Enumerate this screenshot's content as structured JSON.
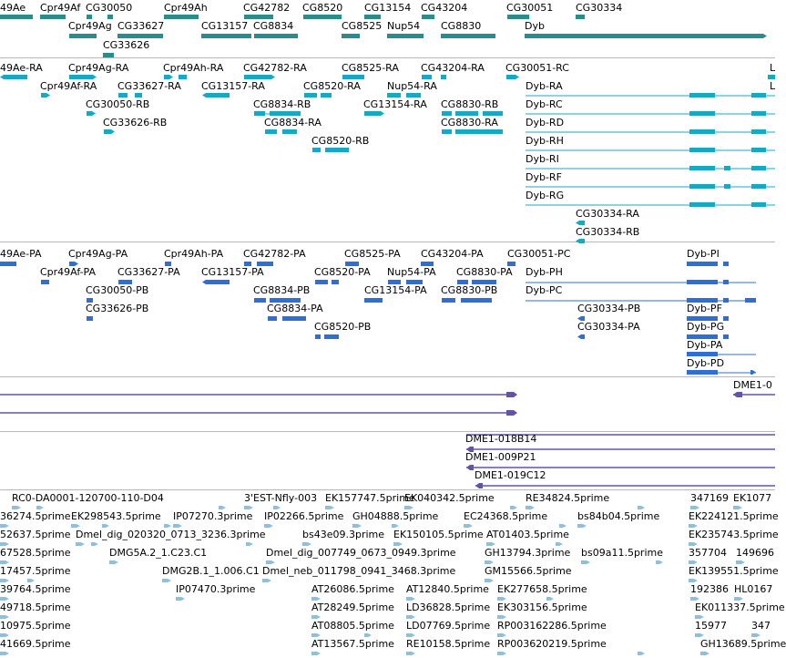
{
  "colors": {
    "gene": "#2b8c8c",
    "mrna": "#17a9c4",
    "protein": "#2d6fd2",
    "clone": "#6652a8",
    "est": "#8fbfd9",
    "separator": "#b8b8b8"
  },
  "tracks": {
    "genes": {
      "name": "genes-track",
      "features": [
        {
          "label": "49Ae"
        },
        {
          "label": "Cpr49Af"
        },
        {
          "label": "CG30050"
        },
        {
          "label": "Cpr49Ah"
        },
        {
          "label": "CG42782"
        },
        {
          "label": "CG8520"
        },
        {
          "label": "CG13154"
        },
        {
          "label": "CG43204"
        },
        {
          "label": "CG30051"
        },
        {
          "label": "CG30334"
        },
        {
          "label": "Cpr49Ag"
        },
        {
          "label": "CG33627"
        },
        {
          "label": "CG13157"
        },
        {
          "label": "CG8834"
        },
        {
          "label": "CG8525"
        },
        {
          "label": "Nup54"
        },
        {
          "label": "CG8830"
        },
        {
          "label": "Dyb"
        },
        {
          "label": "CG33626"
        }
      ]
    },
    "transcripts": {
      "name": "transcripts-track",
      "features": [
        {
          "label": "49Ae-RA"
        },
        {
          "label": "Cpr49Ag-RA"
        },
        {
          "label": "Cpr49Ah-RA"
        },
        {
          "label": "CG42782-RA"
        },
        {
          "label": "CG8525-RA"
        },
        {
          "label": "CG43204-RA"
        },
        {
          "label": "CG30051-RC"
        },
        {
          "label": "L"
        },
        {
          "label": "Cpr49Af-RA"
        },
        {
          "label": "CG33627-RA"
        },
        {
          "label": "CG13157-RA"
        },
        {
          "label": "CG8520-RA"
        },
        {
          "label": "Nup54-RA"
        },
        {
          "label": "Dyb-RA"
        },
        {
          "label": "L"
        },
        {
          "label": "CG30050-RB"
        },
        {
          "label": "CG8834-RB"
        },
        {
          "label": "CG13154-RA"
        },
        {
          "label": "CG8830-RB"
        },
        {
          "label": "Dyb-RC"
        },
        {
          "label": "CG33626-RB"
        },
        {
          "label": "CG8834-RA"
        },
        {
          "label": "CG8830-RA"
        },
        {
          "label": "Dyb-RD"
        },
        {
          "label": "CG8520-RB"
        },
        {
          "label": "Dyb-RH"
        },
        {
          "label": "Dyb-RI"
        },
        {
          "label": "Dyb-RF"
        },
        {
          "label": "Dyb-RG"
        },
        {
          "label": "CG30334-RA"
        },
        {
          "label": "CG30334-RB"
        }
      ]
    },
    "proteins": {
      "name": "proteins-track",
      "features": [
        {
          "label": "49Ae-PA"
        },
        {
          "label": "Cpr49Ag-PA"
        },
        {
          "label": "Cpr49Ah-PA"
        },
        {
          "label": "CG42782-PA"
        },
        {
          "label": "CG8525-PA"
        },
        {
          "label": "CG43204-PA"
        },
        {
          "label": "CG30051-PC"
        },
        {
          "label": "Dyb-PI"
        },
        {
          "label": "Cpr49Af-PA"
        },
        {
          "label": "CG33627-PA"
        },
        {
          "label": "CG13157-PA"
        },
        {
          "label": "CG8520-PA"
        },
        {
          "label": "Nup54-PA"
        },
        {
          "label": "CG8830-PA"
        },
        {
          "label": "Dyb-PH"
        },
        {
          "label": "CG30050-PB"
        },
        {
          "label": "CG8834-PB"
        },
        {
          "label": "CG13154-PA"
        },
        {
          "label": "CG8830-PB"
        },
        {
          "label": "Dyb-PC"
        },
        {
          "label": "CG33626-PB"
        },
        {
          "label": "CG8834-PA"
        },
        {
          "label": "CG30334-PB"
        },
        {
          "label": "Dyb-PF"
        },
        {
          "label": "CG8520-PB"
        },
        {
          "label": "CG30334-PA"
        },
        {
          "label": "Dyb-PG"
        },
        {
          "label": "Dyb-PA"
        },
        {
          "label": "Dyb-PD"
        }
      ]
    },
    "clones_a": {
      "name": "clones-track-a",
      "features": [
        {
          "label": "DME1-0"
        }
      ]
    },
    "clones_b": {
      "name": "clones-track-b",
      "features": [
        {
          "label": "DME1-018B14"
        },
        {
          "label": "DME1-009P21"
        },
        {
          "label": "DME1-019C12"
        }
      ]
    },
    "ests": {
      "name": "ests-track",
      "features": [
        {
          "label": "RC0-DA0001-120700-110-D04"
        },
        {
          "label": "3'EST-Nfly-003"
        },
        {
          "label": "EK157747.5prime"
        },
        {
          "label": "EK040342.5prime"
        },
        {
          "label": "RE34824.5prime"
        },
        {
          "label": "347169"
        },
        {
          "label": "EK1077"
        },
        {
          "label": "36274.5prime"
        },
        {
          "label": "EK298543.5prime"
        },
        {
          "label": "IP07270.3prime"
        },
        {
          "label": "IP02266.5prime"
        },
        {
          "label": "GH04888.5prime"
        },
        {
          "label": "EC24368.5prime"
        },
        {
          "label": "bs84b04.5prime"
        },
        {
          "label": "EK224121.5prime"
        },
        {
          "label": "52637.5prime"
        },
        {
          "label": "Dmel_dig_020320_0713_3236.3prime"
        },
        {
          "label": "bs43e09.3prime"
        },
        {
          "label": "EK150105.5prime"
        },
        {
          "label": "AT01403.5prime"
        },
        {
          "label": "EK235743.5prime"
        },
        {
          "label": "67528.5prime"
        },
        {
          "label": "DMG5A.2_1.C23.C1"
        },
        {
          "label": "Dmel_dig_007749_0673_0949.3prime"
        },
        {
          "label": "GH13794.3prime"
        },
        {
          "label": "bs09a11.5prime"
        },
        {
          "label": "357704"
        },
        {
          "label": "149696"
        },
        {
          "label": "17457.5prime"
        },
        {
          "label": "DMG2B.1_1.006.C1"
        },
        {
          "label": "Dmel_neb_011798_0941_3468.3prime"
        },
        {
          "label": "GM15566.5prime"
        },
        {
          "label": "EK139551.5prime"
        },
        {
          "label": "39764.5prime"
        },
        {
          "label": "IP07470.3prime"
        },
        {
          "label": "AT26086.5prime"
        },
        {
          "label": "AT12840.5prime"
        },
        {
          "label": "EK277658.5prime"
        },
        {
          "label": "192386"
        },
        {
          "label": "HL0167"
        },
        {
          "label": "49718.5prime"
        },
        {
          "label": "AT28249.5prime"
        },
        {
          "label": "LD36828.5prime"
        },
        {
          "label": "EK303156.5prime"
        },
        {
          "label": "EK011337.5prime"
        },
        {
          "label": "10975.5prime"
        },
        {
          "label": "AT08805.5prime"
        },
        {
          "label": "LD07769.5prime"
        },
        {
          "label": "RP003162286.5prime"
        },
        {
          "label": "15977"
        },
        {
          "label": "347"
        },
        {
          "label": "41669.5prime"
        },
        {
          "label": "AT13567.5prime"
        },
        {
          "label": "RE10158.5prime"
        },
        {
          "label": "RP003620219.5prime"
        },
        {
          "label": "GH13689.5prime"
        }
      ]
    }
  }
}
